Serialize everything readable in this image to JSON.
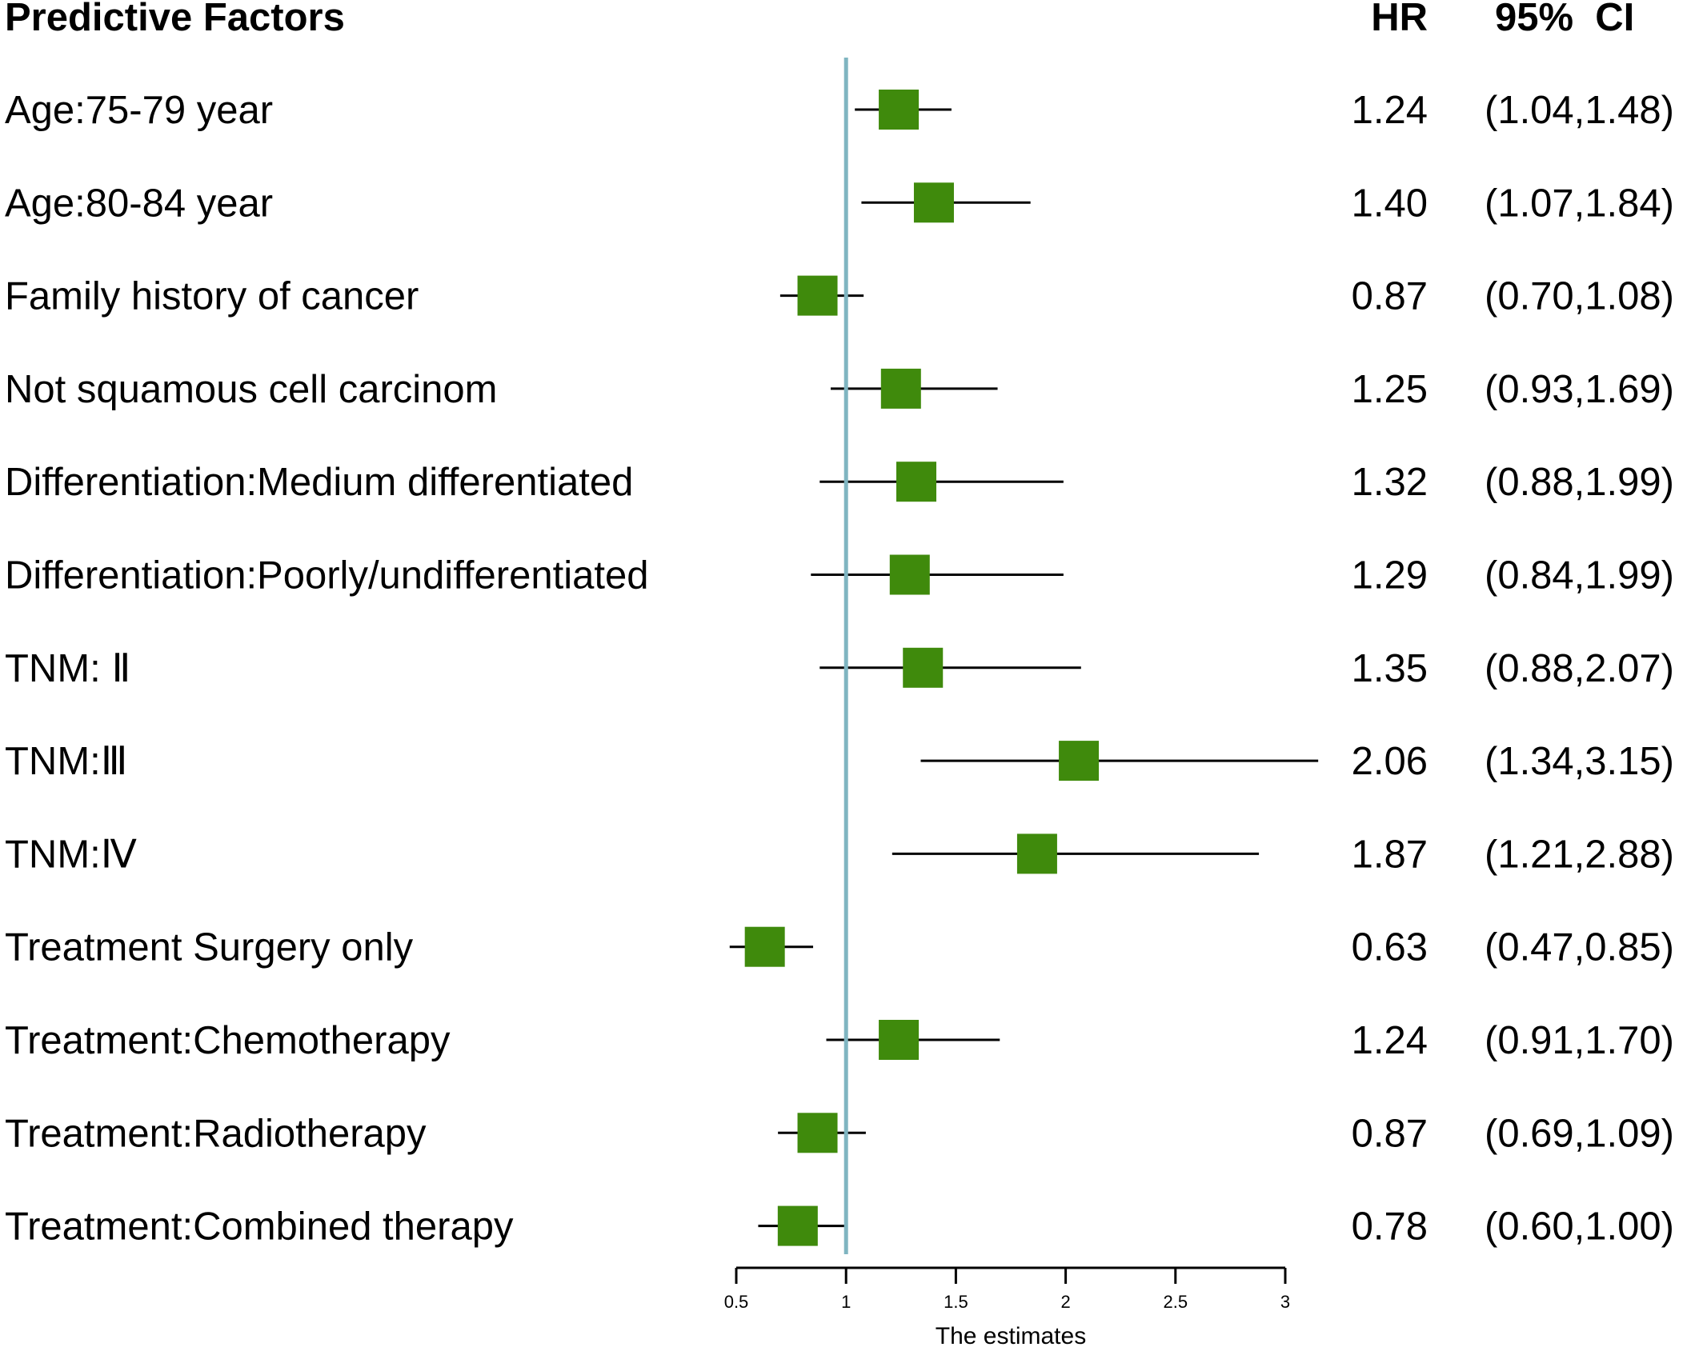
{
  "chart_data": {
    "type": "forest",
    "headers": {
      "factors": "Predictive Factors",
      "hr": "HR",
      "ci": "95%  CI"
    },
    "xlabel": "The estimates",
    "xlim": [
      0.5,
      3
    ],
    "xticks": [
      0.5,
      1,
      1.5,
      2,
      2.5,
      3
    ],
    "xtick_labels": [
      "0.5",
      "1",
      "1.5",
      "2",
      "2.5",
      "3"
    ],
    "reference_line": 1,
    "colors": {
      "marker": "#3f8a0c",
      "reference": "#7fb5c1",
      "line": "#000000"
    },
    "rows": [
      {
        "label": "Age:75-79 year",
        "hr": 1.24,
        "lo": 1.04,
        "hi": 1.48,
        "hr_text": "1.24",
        "ci_text": "(1.04,1.48)"
      },
      {
        "label": "Age:80-84 year",
        "hr": 1.4,
        "lo": 1.07,
        "hi": 1.84,
        "hr_text": "1.40",
        "ci_text": "(1.07,1.84)"
      },
      {
        "label": "Family history of cancer",
        "hr": 0.87,
        "lo": 0.7,
        "hi": 1.08,
        "hr_text": "0.87",
        "ci_text": "(0.70,1.08)"
      },
      {
        "label": "Not squamous cell carcinom",
        "hr": 1.25,
        "lo": 0.93,
        "hi": 1.69,
        "hr_text": "1.25",
        "ci_text": "(0.93,1.69)"
      },
      {
        "label": "Differentiation:Medium differentiated",
        "hr": 1.32,
        "lo": 0.88,
        "hi": 1.99,
        "hr_text": "1.32",
        "ci_text": "(0.88,1.99)"
      },
      {
        "label": "Differentiation:Poorly/undifferentiated",
        "hr": 1.29,
        "lo": 0.84,
        "hi": 1.99,
        "hr_text": "1.29",
        "ci_text": "(0.84,1.99)"
      },
      {
        "label": "TNM: Ⅱ",
        "hr": 1.35,
        "lo": 0.88,
        "hi": 2.07,
        "hr_text": "1.35",
        "ci_text": "(0.88,2.07)"
      },
      {
        "label": "TNM:Ⅲ",
        "hr": 2.06,
        "lo": 1.34,
        "hi": 3.15,
        "hr_text": "2.06",
        "ci_text": "(1.34,3.15)"
      },
      {
        "label": "TNM:Ⅳ",
        "hr": 1.87,
        "lo": 1.21,
        "hi": 2.88,
        "hr_text": "1.87",
        "ci_text": "(1.21,2.88)"
      },
      {
        "label": "Treatment Surgery  only",
        "hr": 0.63,
        "lo": 0.47,
        "hi": 0.85,
        "hr_text": "0.63",
        "ci_text": "(0.47,0.85)"
      },
      {
        "label": "Treatment:Chemotherapy",
        "hr": 1.24,
        "lo": 0.91,
        "hi": 1.7,
        "hr_text": "1.24",
        "ci_text": "(0.91,1.70)"
      },
      {
        "label": "Treatment:Radiotherapy",
        "hr": 0.87,
        "lo": 0.69,
        "hi": 1.09,
        "hr_text": "0.87",
        "ci_text": "(0.69,1.09)"
      },
      {
        "label": "Treatment:Combined therapy",
        "hr": 0.78,
        "lo": 0.6,
        "hi": 1.0,
        "hr_text": "0.78",
        "ci_text": "(0.60,1.00)"
      }
    ]
  }
}
